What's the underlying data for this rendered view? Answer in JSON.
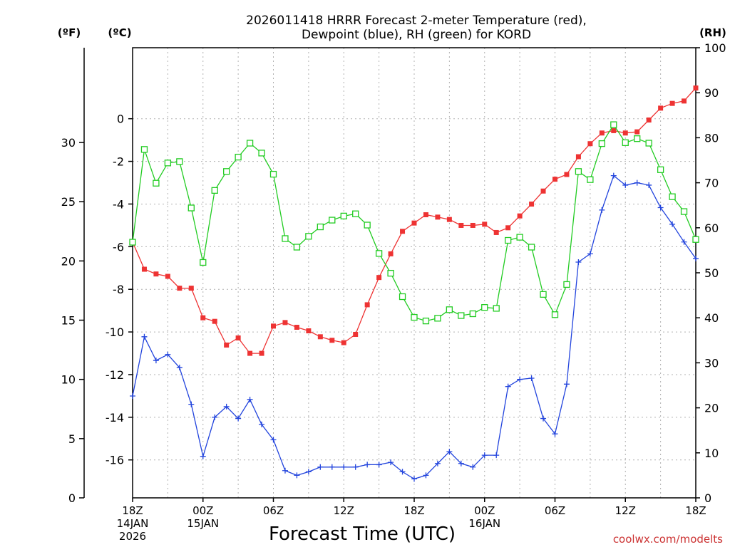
{
  "chart_data": {
    "type": "line",
    "title_line1": "2026011418 HRRR Forecast 2-meter Temperature (red),",
    "title_line2": "Dewpoint (blue), RH (green) for KORD",
    "xlabel": "Forecast Time (UTC)",
    "credit": "coolwx.com/modelts",
    "units": {
      "f": "(ºF)",
      "c": "(ºC)",
      "rh": "(RH)"
    },
    "left_axis_f": {
      "ylim": [
        0,
        38
      ],
      "ticks": [
        "0",
        "5",
        "10",
        "15",
        "20",
        "25",
        "30"
      ]
    },
    "left_axis_c": {
      "ylim": [
        -17.78,
        3.33
      ],
      "ticks": [
        "-16",
        "-14",
        "-12",
        "-10",
        "-8",
        "-6",
        "-4",
        "-2",
        "0"
      ]
    },
    "right_axis_rh": {
      "ylim": [
        0,
        100
      ],
      "ticks": [
        "0",
        "10",
        "20",
        "30",
        "40",
        "50",
        "60",
        "70",
        "80",
        "90",
        "100"
      ]
    },
    "x_hours": {
      "range": [
        0,
        48
      ],
      "grid_step": 3
    },
    "x_labels": [
      {
        "hour": 0,
        "lines": [
          "18Z",
          "14JAN",
          "2026"
        ]
      },
      {
        "hour": 6,
        "lines": [
          "00Z",
          "15JAN"
        ]
      },
      {
        "hour": 12,
        "lines": [
          "06Z"
        ]
      },
      {
        "hour": 18,
        "lines": [
          "12Z"
        ]
      },
      {
        "hour": 24,
        "lines": [
          "18Z"
        ]
      },
      {
        "hour": 30,
        "lines": [
          "00Z",
          "16JAN"
        ]
      },
      {
        "hour": 36,
        "lines": [
          "06Z"
        ]
      },
      {
        "hour": 42,
        "lines": [
          "12Z"
        ]
      },
      {
        "hour": 48,
        "lines": [
          "18Z"
        ]
      }
    ],
    "series": [
      {
        "name": "Temperature",
        "axis": "f",
        "color": "#ee3333",
        "marker": "square-filled",
        "x": [
          0,
          1,
          2,
          3,
          4,
          5,
          6,
          7,
          8,
          9,
          10,
          11,
          12,
          13,
          14,
          15,
          16,
          17,
          18,
          19,
          20,
          21,
          22,
          23,
          24,
          25,
          26,
          27,
          28,
          29,
          30,
          31,
          32,
          33,
          34,
          35,
          36,
          37,
          38,
          39,
          40,
          41,
          42,
          43,
          44,
          45,
          46,
          47,
          48
        ],
        "values": [
          21.6,
          19.3,
          18.9,
          18.7,
          17.7,
          17.7,
          15.2,
          14.9,
          12.9,
          13.5,
          12.2,
          12.2,
          14.5,
          14.8,
          14.4,
          14.1,
          13.6,
          13.3,
          13.1,
          13.8,
          16.3,
          18.6,
          20.6,
          22.5,
          23.2,
          23.9,
          23.7,
          23.5,
          23.0,
          23.0,
          23.1,
          22.4,
          22.8,
          23.8,
          24.8,
          25.9,
          26.9,
          27.3,
          28.8,
          29.9,
          30.8,
          31.0,
          30.8,
          30.9,
          31.9,
          32.9,
          33.3,
          33.5,
          34.6
        ]
      },
      {
        "name": "Dewpoint",
        "axis": "f",
        "color": "#2244dd",
        "marker": "plus",
        "x": [
          0,
          1,
          2,
          3,
          4,
          5,
          6,
          7,
          8,
          9,
          10,
          11,
          12,
          13,
          14,
          15,
          16,
          17,
          18,
          19,
          20,
          21,
          22,
          23,
          24,
          25,
          26,
          27,
          28,
          29,
          30,
          31,
          32,
          33,
          34,
          35,
          36,
          37,
          38,
          39,
          40,
          41,
          42,
          43,
          44,
          45,
          46,
          47,
          48
        ],
        "values": [
          8.6,
          13.6,
          11.6,
          12.1,
          11.0,
          7.9,
          3.5,
          6.8,
          7.7,
          6.7,
          8.3,
          6.2,
          4.9,
          2.3,
          1.9,
          2.2,
          2.6,
          2.6,
          2.6,
          2.6,
          2.8,
          2.8,
          3.0,
          2.2,
          1.6,
          1.9,
          2.9,
          3.9,
          2.9,
          2.6,
          3.6,
          3.6,
          9.4,
          10.0,
          10.1,
          6.7,
          5.4,
          9.6,
          19.9,
          20.6,
          24.3,
          27.2,
          26.4,
          26.6,
          26.4,
          24.5,
          23.1,
          21.6,
          20.2
        ]
      },
      {
        "name": "RH",
        "axis": "rh",
        "color": "#22cc22",
        "marker": "square-open",
        "x": [
          0,
          1,
          2,
          3,
          4,
          5,
          6,
          7,
          8,
          9,
          10,
          11,
          12,
          13,
          14,
          15,
          16,
          17,
          18,
          19,
          20,
          21,
          22,
          23,
          24,
          25,
          26,
          27,
          28,
          29,
          30,
          31,
          32,
          33,
          34,
          35,
          36,
          37,
          38,
          39,
          40,
          41,
          42,
          43,
          44,
          45,
          46,
          47,
          48
        ],
        "values": [
          56.8,
          77.4,
          69.9,
          74.4,
          74.7,
          64.4,
          52.3,
          68.3,
          72.5,
          75.7,
          78.8,
          76.6,
          71.9,
          57.6,
          55.7,
          58.1,
          60.2,
          61.7,
          62.6,
          63.1,
          60.6,
          54.3,
          49.9,
          44.7,
          40.1,
          39.3,
          39.9,
          41.8,
          40.5,
          40.9,
          42.3,
          42.1,
          57.2,
          57.9,
          55.7,
          45.2,
          40.7,
          47.4,
          72.5,
          70.7,
          78.7,
          82.9,
          78.9,
          79.8,
          78.8,
          72.9,
          66.9,
          63.6,
          57.4
        ]
      }
    ]
  }
}
